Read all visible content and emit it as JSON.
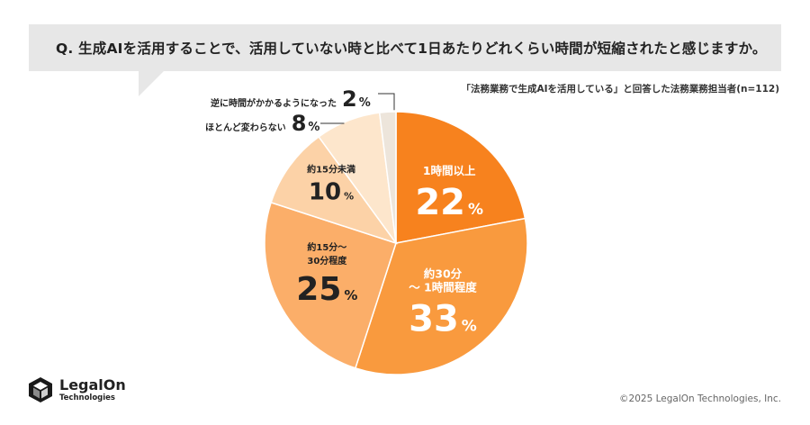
{
  "question": {
    "text": "Q. 生成AIを活用することで、活用していない時と比べて1日あたりどれくらい時間が短縮されたと感じますか。"
  },
  "respondent_note": "「法務業務で生成AIを活用している」と回答した法務業務担当者(n=112)",
  "chart_data": {
    "type": "pie",
    "title": "",
    "slices": [
      {
        "label": "1時間以上",
        "value": 22,
        "color": "#f7821e"
      },
      {
        "label": "約30分～1時間程度",
        "value": 33,
        "color": "#f99a3e"
      },
      {
        "label": "約15分～30分程度",
        "value": 25,
        "color": "#fbae69"
      },
      {
        "label": "約15分未満",
        "value": 10,
        "color": "#fcd2a7"
      },
      {
        "label": "ほとんど変わらない",
        "value": 8,
        "color": "#fde6cc"
      },
      {
        "label": "逆に時間がかかるようになった",
        "value": 2,
        "color": "#ede5db"
      }
    ],
    "unit": "%"
  },
  "inside_labels": [
    {
      "lines": [
        "1時間以上"
      ],
      "num": "22"
    },
    {
      "lines": [
        "約30分",
        "～ 1時間程度"
      ],
      "num": "33"
    },
    {
      "lines": [
        "約15分～",
        "30分程度"
      ],
      "num": "25"
    },
    {
      "lines": [
        "約15分未満"
      ],
      "num": "10"
    }
  ],
  "outside_labels": [
    {
      "label": "逆に時間がかかるようになった",
      "num": "2",
      "pct": "%"
    },
    {
      "label": "ほとんど変わらない",
      "num": "8",
      "pct": "%"
    }
  ],
  "footer": {
    "logo_name": "LegalOn",
    "logo_sub": "Technologies",
    "copyright": "©2025 LegalOn Technologies, Inc."
  }
}
